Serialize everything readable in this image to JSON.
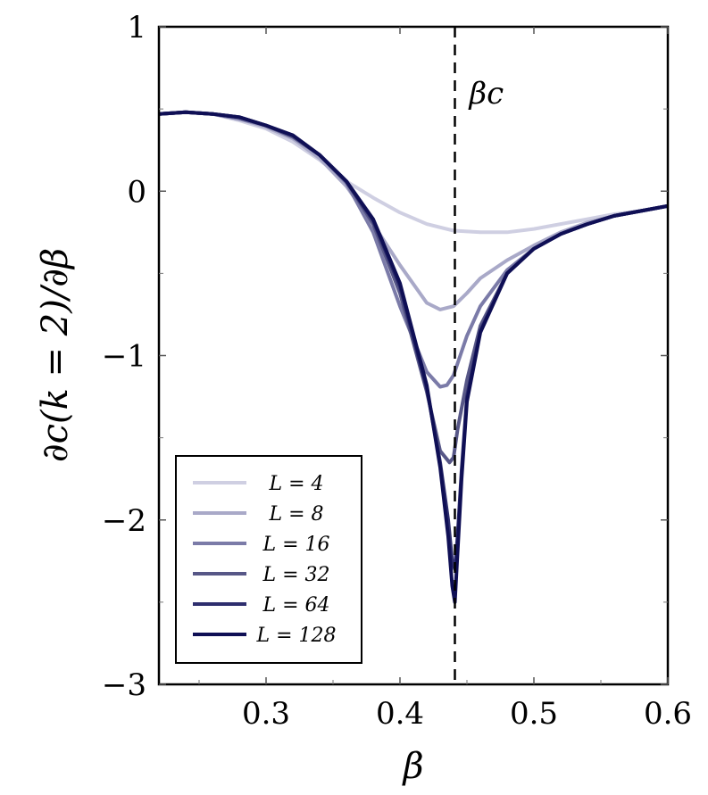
{
  "chart_data": {
    "type": "line",
    "title": "",
    "xlabel": "β",
    "ylabel": "∂c(k = 2)/∂β",
    "xlim": [
      0.22,
      0.6
    ],
    "ylim": [
      -3,
      1
    ],
    "xticks": [
      0.3,
      0.4,
      0.5,
      0.6
    ],
    "xtick_labels": [
      "0.3",
      "0.4",
      "0.5",
      "0.6"
    ],
    "yticks": [
      1,
      0,
      -1,
      -2,
      -3
    ],
    "ytick_labels": [
      "1",
      "0",
      "−1",
      "−2",
      "−3"
    ],
    "grid": false,
    "legend_position": "bottom-left",
    "annotations": [
      {
        "text": "βc",
        "x": 0.441,
        "type": "vertical-dashed-line"
      }
    ],
    "series": [
      {
        "name": "L = 4",
        "color": "#cfcfe2",
        "x": [
          0.22,
          0.24,
          0.26,
          0.28,
          0.3,
          0.32,
          0.34,
          0.36,
          0.38,
          0.4,
          0.42,
          0.44,
          0.46,
          0.48,
          0.5,
          0.52,
          0.54,
          0.56,
          0.58,
          0.6
        ],
        "y": [
          0.47,
          0.48,
          0.47,
          0.43,
          0.38,
          0.3,
          0.19,
          0.06,
          -0.04,
          -0.13,
          -0.2,
          -0.24,
          -0.25,
          -0.25,
          -0.23,
          -0.2,
          -0.17,
          -0.14,
          -0.12,
          -0.09
        ]
      },
      {
        "name": "L = 8",
        "color": "#a9a9c8",
        "x": [
          0.22,
          0.24,
          0.26,
          0.28,
          0.3,
          0.32,
          0.34,
          0.36,
          0.38,
          0.4,
          0.42,
          0.43,
          0.44,
          0.45,
          0.46,
          0.48,
          0.5,
          0.52,
          0.54,
          0.56,
          0.58,
          0.6
        ],
        "y": [
          0.47,
          0.48,
          0.47,
          0.44,
          0.39,
          0.32,
          0.2,
          0.03,
          -0.2,
          -0.45,
          -0.68,
          -0.72,
          -0.7,
          -0.62,
          -0.53,
          -0.42,
          -0.33,
          -0.25,
          -0.19,
          -0.15,
          -0.12,
          -0.09
        ]
      },
      {
        "name": "L = 16",
        "color": "#7b7ba8",
        "x": [
          0.22,
          0.24,
          0.26,
          0.28,
          0.3,
          0.32,
          0.34,
          0.36,
          0.38,
          0.4,
          0.42,
          0.43,
          0.435,
          0.44,
          0.445,
          0.45,
          0.46,
          0.48,
          0.5,
          0.52,
          0.54,
          0.56,
          0.58,
          0.6
        ],
        "y": [
          0.47,
          0.48,
          0.47,
          0.44,
          0.4,
          0.33,
          0.22,
          0.05,
          -0.25,
          -0.7,
          -1.1,
          -1.19,
          -1.18,
          -1.12,
          -1.0,
          -0.88,
          -0.7,
          -0.48,
          -0.35,
          -0.26,
          -0.2,
          -0.15,
          -0.12,
          -0.09
        ]
      },
      {
        "name": "L = 32",
        "color": "#575787",
        "x": [
          0.22,
          0.24,
          0.26,
          0.28,
          0.3,
          0.32,
          0.34,
          0.36,
          0.38,
          0.4,
          0.42,
          0.43,
          0.437,
          0.44,
          0.443,
          0.45,
          0.46,
          0.48,
          0.5,
          0.52,
          0.54,
          0.56,
          0.58,
          0.6
        ],
        "y": [
          0.47,
          0.48,
          0.47,
          0.45,
          0.4,
          0.33,
          0.22,
          0.06,
          -0.2,
          -0.62,
          -1.22,
          -1.58,
          -1.65,
          -1.62,
          -1.45,
          -1.15,
          -0.82,
          -0.5,
          -0.35,
          -0.26,
          -0.2,
          -0.15,
          -0.12,
          -0.09
        ]
      },
      {
        "name": "L = 64",
        "color": "#2e2e6e",
        "x": [
          0.22,
          0.24,
          0.26,
          0.28,
          0.3,
          0.32,
          0.34,
          0.36,
          0.38,
          0.4,
          0.42,
          0.43,
          0.436,
          0.439,
          0.441,
          0.443,
          0.446,
          0.45,
          0.46,
          0.48,
          0.5,
          0.52,
          0.54,
          0.56,
          0.58,
          0.6
        ],
        "y": [
          0.47,
          0.48,
          0.47,
          0.45,
          0.4,
          0.34,
          0.22,
          0.06,
          -0.18,
          -0.58,
          -1.2,
          -1.65,
          -2.0,
          -2.25,
          -2.3,
          -2.1,
          -1.7,
          -1.25,
          -0.85,
          -0.5,
          -0.35,
          -0.26,
          -0.2,
          -0.15,
          -0.12,
          -0.09
        ]
      },
      {
        "name": "L = 128",
        "color": "#0f0f55",
        "x": [
          0.22,
          0.24,
          0.26,
          0.28,
          0.3,
          0.32,
          0.34,
          0.36,
          0.38,
          0.4,
          0.42,
          0.43,
          0.436,
          0.439,
          0.441,
          0.443,
          0.446,
          0.45,
          0.46,
          0.48,
          0.5,
          0.52,
          0.54,
          0.56,
          0.58,
          0.6
        ],
        "y": [
          0.47,
          0.48,
          0.47,
          0.45,
          0.4,
          0.34,
          0.22,
          0.06,
          -0.17,
          -0.56,
          -1.18,
          -1.68,
          -2.1,
          -2.4,
          -2.5,
          -2.2,
          -1.75,
          -1.28,
          -0.86,
          -0.5,
          -0.35,
          -0.26,
          -0.2,
          -0.15,
          -0.12,
          -0.09
        ]
      }
    ]
  }
}
